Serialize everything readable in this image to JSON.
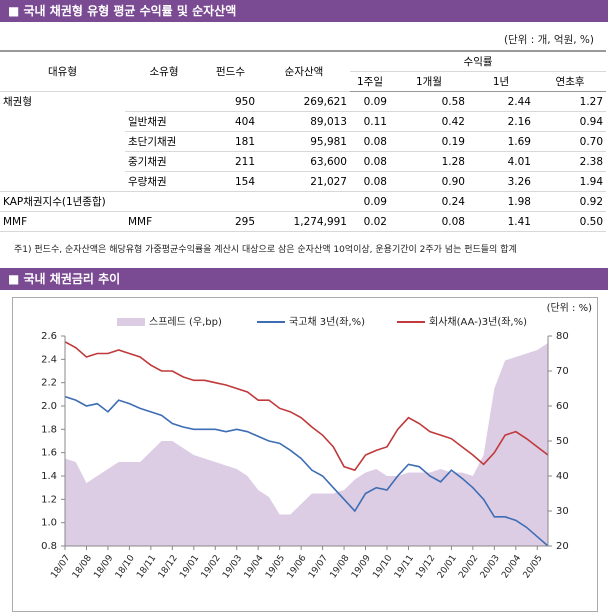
{
  "header": {
    "title": "■ 국내 채권형 유형 평균 수익률 및 순자산액",
    "unit": "(단위 : 개, 억원, %)"
  },
  "table": {
    "columns": [
      "대유형",
      "소유형",
      "펀드수",
      "순자산액"
    ],
    "group": "수익률",
    "subcolumns": [
      "1주일",
      "1개월",
      "1년",
      "연초후"
    ],
    "rows": [
      [
        "채권형",
        null,
        "950",
        "269,621",
        "0.09",
        "0.58",
        "2.44",
        "1.27"
      ],
      [
        null,
        "일반채권",
        "404",
        "89,013",
        "0.11",
        "0.42",
        "2.16",
        "0.94"
      ],
      [
        null,
        "초단기채권",
        "181",
        "95,981",
        "0.08",
        "0.19",
        "1.69",
        "0.70"
      ],
      [
        null,
        "중기채권",
        "211",
        "63,600",
        "0.08",
        "1.28",
        "4.01",
        "2.38"
      ],
      [
        null,
        "우량채권",
        "154",
        "21,027",
        "0.08",
        "0.90",
        "3.26",
        "1.94"
      ],
      [
        "KAP채권지수(1년종합)",
        null,
        null,
        null,
        "0.09",
        "0.24",
        "1.98",
        "0.92"
      ],
      [
        "MMF",
        "MMF",
        "295",
        "1,274,991",
        "0.02",
        "0.08",
        "1.41",
        "0.50"
      ]
    ]
  },
  "note": "주1) 펀드수, 순자산액은 해당유형 가중평균수익률을 계산시 대상으로 삼은 순자산액 10억이상, 운용기간이 2주가 넘는 펀드들의 합계",
  "chart_header": {
    "title": "■ 국내 채권금리 추이"
  },
  "chart_data": {
    "type": "line",
    "unit": "(단위 : %)",
    "categories": [
      "18/07",
      null,
      "18/08",
      null,
      "18/09",
      null,
      "18/10",
      null,
      "18/11",
      null,
      "18/12",
      null,
      "19/01",
      null,
      "19/02",
      null,
      "19/03",
      null,
      "19/04",
      null,
      "19/05",
      null,
      "19/06",
      null,
      "19/07",
      null,
      "19/08",
      null,
      "19/09",
      null,
      "19/10",
      null,
      "19/11",
      null,
      "19/12",
      null,
      "20/01",
      null,
      "20/02",
      null,
      "20/03",
      null,
      "20/04",
      null,
      "20/05",
      null
    ],
    "series": [
      {
        "name": "스프레드 (우,bp)",
        "type": "area",
        "axis": "y2",
        "color": "#ddcde4",
        "values": [
          45,
          44,
          38,
          40,
          42,
          44,
          44,
          44,
          47,
          50,
          50,
          48,
          46,
          45,
          44,
          43,
          42,
          40,
          36,
          34,
          29,
          29,
          32,
          35,
          35,
          35,
          36,
          39,
          41,
          42,
          40,
          40,
          41,
          41,
          41,
          42,
          41,
          41,
          40,
          46,
          65,
          73,
          74,
          75,
          76,
          78
        ]
      },
      {
        "name": "국고채 3년(좌,%)",
        "type": "line",
        "color": "#3d6db4",
        "values": [
          2.08,
          2.05,
          2.0,
          2.02,
          1.95,
          2.05,
          2.02,
          1.98,
          1.95,
          1.92,
          1.85,
          1.82,
          1.8,
          1.8,
          1.8,
          1.78,
          1.8,
          1.78,
          1.74,
          1.7,
          1.68,
          1.62,
          1.55,
          1.45,
          1.4,
          1.3,
          1.2,
          1.1,
          1.25,
          1.3,
          1.28,
          1.4,
          1.5,
          1.48,
          1.4,
          1.35,
          1.45,
          1.38,
          1.3,
          1.2,
          1.05,
          1.05,
          1.02,
          0.96,
          0.88,
          0.8
        ]
      },
      {
        "name": "회사채(AA-)3년(좌,%)",
        "type": "line",
        "color": "#c0393b",
        "values": [
          2.55,
          2.5,
          2.42,
          2.45,
          2.45,
          2.48,
          2.45,
          2.42,
          2.35,
          2.3,
          2.3,
          2.25,
          2.22,
          2.22,
          2.2,
          2.18,
          2.15,
          2.12,
          2.05,
          2.05,
          1.98,
          1.95,
          1.9,
          1.82,
          1.75,
          1.65,
          1.48,
          1.45,
          1.58,
          1.62,
          1.65,
          1.8,
          1.9,
          1.85,
          1.78,
          1.75,
          1.72,
          1.65,
          1.58,
          1.5,
          1.6,
          1.75,
          1.78,
          1.72,
          1.65,
          1.58
        ]
      }
    ],
    "ylim": [
      0.8,
      2.6
    ],
    "yticks": [
      0.8,
      {
        "value": 1,
        "label": "1.0"
      },
      1.2,
      1.4,
      1.6,
      1.8,
      {
        "value": 2,
        "label": "2.0"
      },
      2.2,
      2.4,
      2.6
    ],
    "y2lim": [
      20,
      80
    ],
    "y2ticks": [
      20,
      30,
      40,
      50,
      60,
      70,
      80
    ],
    "legend": "top"
  }
}
